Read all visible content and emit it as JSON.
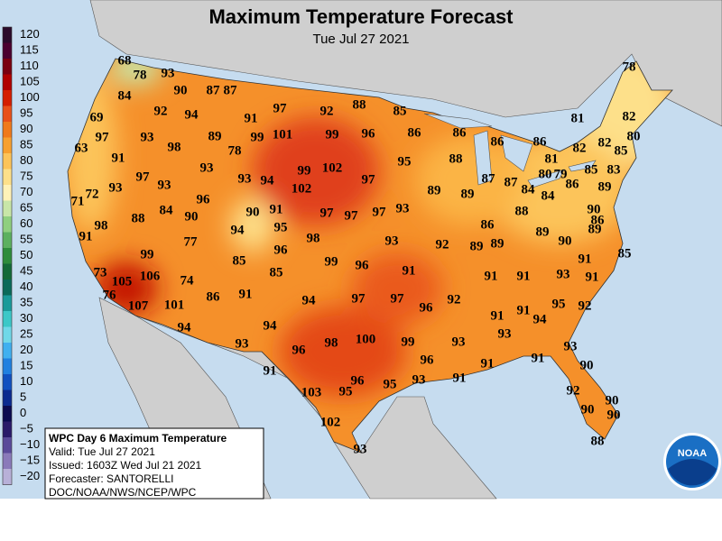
{
  "header": {
    "title": "Maximum Temperature Forecast",
    "subtitle": "Tue Jul 27 2021"
  },
  "legend": [
    {
      "label": "120",
      "color": "#2a0a2a"
    },
    {
      "label": "115",
      "color": "#4b0030"
    },
    {
      "label": "110",
      "color": "#7a0010"
    },
    {
      "label": "105",
      "color": "#b00000"
    },
    {
      "label": "100",
      "color": "#d41e00"
    },
    {
      "label": "95",
      "color": "#e8501a"
    },
    {
      "label": "90",
      "color": "#f07a1c"
    },
    {
      "label": "85",
      "color": "#f7a030"
    },
    {
      "label": "80",
      "color": "#fcc45a"
    },
    {
      "label": "75",
      "color": "#fde08a"
    },
    {
      "label": "70",
      "color": "#fff2b8"
    },
    {
      "label": "65",
      "color": "#c8e6a8"
    },
    {
      "label": "60",
      "color": "#8fcf80"
    },
    {
      "label": "55",
      "color": "#5cb060"
    },
    {
      "label": "50",
      "color": "#2e8c3c"
    },
    {
      "label": "45",
      "color": "#146a38"
    },
    {
      "label": "40",
      "color": "#0a6a5a"
    },
    {
      "label": "35",
      "color": "#1a9a9a"
    },
    {
      "label": "30",
      "color": "#3cc8c8"
    },
    {
      "label": "25",
      "color": "#70d8e8"
    },
    {
      "label": "20",
      "color": "#40b0f0"
    },
    {
      "label": "15",
      "color": "#2080e0"
    },
    {
      "label": "10",
      "color": "#1050c0"
    },
    {
      "label": "5",
      "color": "#0a2a90"
    },
    {
      "label": "0",
      "color": "#0a0a50"
    },
    {
      "label": "−5",
      "color": "#2a1a6a"
    },
    {
      "label": "−10",
      "color": "#5a4a9a"
    },
    {
      "label": "−15",
      "color": "#8a7aba"
    },
    {
      "label": "−20",
      "color": "#b8b0d8"
    }
  ],
  "info_box": {
    "title": "WPC Day 6 Maximum Temperature",
    "lines": [
      "Valid: Tue Jul 27 2021",
      "Issued: 1603Z Wed Jul 21 2021",
      "Forecaster: SANTORELLI",
      "DOC/NOAA/NWS/NCEP/WPC"
    ]
  },
  "logo_text": "NOAA",
  "temperatures": [
    68,
    78,
    93,
    90,
    87,
    87,
    84,
    92,
    94,
    69,
    91,
    97,
    88,
    92,
    85,
    97,
    93,
    98,
    89,
    78,
    99,
    101,
    99,
    96,
    86,
    86,
    63,
    91,
    93,
    95,
    88,
    86,
    86,
    81,
    82,
    78,
    80,
    82,
    82,
    85,
    81,
    85,
    83,
    80,
    79,
    87,
    84,
    84,
    86,
    89,
    90,
    86,
    89,
    97,
    93,
    93,
    94,
    99,
    102,
    102,
    97,
    89,
    89,
    87,
    72,
    71,
    93,
    96,
    88,
    84,
    90,
    90,
    91,
    95,
    97,
    97,
    97,
    93,
    86,
    88,
    98,
    91,
    94,
    99,
    77,
    96,
    98,
    93,
    92,
    89,
    89,
    89,
    90,
    91,
    85,
    85,
    85,
    99,
    96,
    91,
    91,
    91,
    93,
    91,
    73,
    105,
    106,
    74,
    76,
    86,
    91,
    94,
    97,
    97,
    96,
    92,
    107,
    101,
    91,
    91,
    94,
    95,
    92,
    94,
    94,
    93,
    93,
    98,
    100,
    99,
    96,
    93,
    93,
    91,
    91,
    96,
    91,
    96,
    95,
    93,
    91,
    90,
    103,
    95,
    92,
    90,
    90,
    90,
    102,
    93,
    88
  ]
}
